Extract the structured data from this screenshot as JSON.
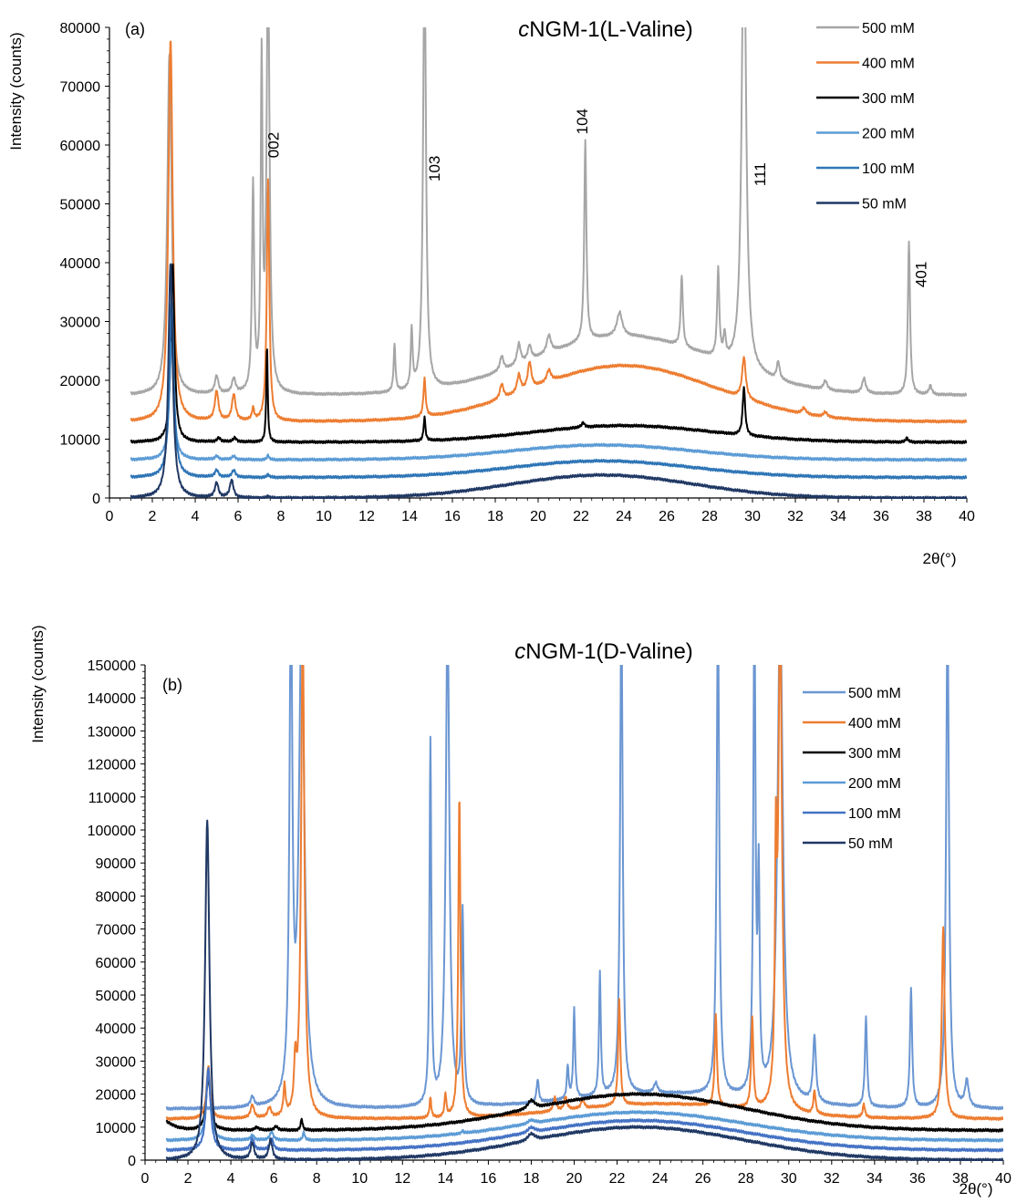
{
  "chart_data": [
    {
      "type": "line",
      "panel_label": "(a)",
      "title_prefix": "c",
      "title_rest": "NGM-1(L-Valine)",
      "xlabel": "2θ(°)",
      "ylabel": "Intensity (counts)",
      "xlim": [
        0,
        40
      ],
      "ylim": [
        0,
        80000
      ],
      "xticks": [
        0,
        2,
        4,
        6,
        8,
        10,
        12,
        14,
        16,
        18,
        20,
        22,
        24,
        26,
        28,
        30,
        32,
        34,
        36,
        38,
        40
      ],
      "yticks": [
        0,
        10000,
        20000,
        30000,
        40000,
        50000,
        60000,
        70000,
        80000
      ],
      "grid": false,
      "legend_position": "top-right",
      "annotations": [
        {
          "text": "002",
          "x": 7.9,
          "y": 60000
        },
        {
          "text": "103",
          "x": 15.4,
          "y": 56000
        },
        {
          "text": "104",
          "x": 22.3,
          "y": 64000
        },
        {
          "text": "111",
          "x": 30.6,
          "y": 55000
        },
        {
          "text": "401",
          "x": 38.1,
          "y": 38000
        }
      ],
      "series": [
        {
          "name": "500 mM",
          "color": "#a6a6a6",
          "baseline": 17500,
          "hump": 10000,
          "hump_center": 24,
          "hump_width": 6,
          "peaks": [
            [
              2.8,
              58000,
              0.12
            ],
            [
              5.0,
              3000,
              0.1
            ],
            [
              5.8,
              2500,
              0.1
            ],
            [
              6.7,
              35000,
              0.06
            ],
            [
              7.1,
              55000,
              0.05
            ],
            [
              7.4,
              75000,
              0.08
            ],
            [
              13.3,
              8000,
              0.05
            ],
            [
              14.1,
              10000,
              0.05
            ],
            [
              14.7,
              75000,
              0.08
            ],
            [
              18.3,
              2500,
              0.1
            ],
            [
              19.1,
              3500,
              0.1
            ],
            [
              19.6,
              2500,
              0.1
            ],
            [
              20.5,
              3000,
              0.12
            ],
            [
              22.2,
              34000,
              0.06
            ],
            [
              23.8,
              4000,
              0.15
            ],
            [
              26.7,
              12000,
              0.06
            ],
            [
              28.4,
              15000,
              0.06
            ],
            [
              28.7,
              4000,
              0.06
            ],
            [
              29.6,
              80000,
              0.12
            ],
            [
              31.2,
              3000,
              0.08
            ],
            [
              33.4,
              1500,
              0.1
            ],
            [
              35.2,
              2500,
              0.1
            ],
            [
              37.3,
              26000,
              0.06
            ],
            [
              38.3,
              1500,
              0.08
            ]
          ]
        },
        {
          "name": "400 mM",
          "color": "#ed7d31",
          "baseline": 13000,
          "hump": 9500,
          "hump_center": 24,
          "hump_width": 6,
          "peaks": [
            [
              2.85,
              65000,
              0.12
            ],
            [
              5.0,
              5000,
              0.1
            ],
            [
              5.8,
              4500,
              0.1
            ],
            [
              6.7,
              2000,
              0.06
            ],
            [
              7.4,
              41000,
              0.07
            ],
            [
              14.7,
              6500,
              0.06
            ],
            [
              18.3,
              2500,
              0.1
            ],
            [
              19.1,
              3000,
              0.1
            ],
            [
              19.6,
              4500,
              0.1
            ],
            [
              20.5,
              2000,
              0.12
            ],
            [
              29.6,
              7000,
              0.1
            ],
            [
              32.4,
              1000,
              0.1
            ],
            [
              33.4,
              800,
              0.1
            ]
          ]
        },
        {
          "name": "300 mM",
          "color": "#000000",
          "baseline": 9500,
          "hump": 2800,
          "hump_center": 24,
          "hump_width": 6,
          "peaks": [
            [
              2.95,
              30500,
              0.1
            ],
            [
              5.1,
              700,
              0.1
            ],
            [
              5.85,
              700,
              0.1
            ],
            [
              7.35,
              16500,
              0.04
            ],
            [
              14.7,
              4000,
              0.05
            ],
            [
              22.1,
              800,
              0.08
            ],
            [
              29.6,
              8200,
              0.07
            ],
            [
              37.2,
              700,
              0.06
            ]
          ]
        },
        {
          "name": "200 mM",
          "color": "#5b9bd5",
          "baseline": 6500,
          "hump": 2500,
          "hump_center": 23,
          "hump_width": 6,
          "peaks": [
            [
              2.9,
              20000,
              0.12
            ],
            [
              5.0,
              600,
              0.1
            ],
            [
              5.8,
              600,
              0.1
            ],
            [
              7.4,
              800,
              0.05
            ]
          ]
        },
        {
          "name": "100 mM",
          "color": "#2e75b6",
          "baseline": 3500,
          "hump": 2800,
          "hump_center": 23,
          "hump_width": 6,
          "peaks": [
            [
              2.9,
              30000,
              0.12
            ],
            [
              5.0,
              1200,
              0.1
            ],
            [
              5.8,
              1200,
              0.1
            ],
            [
              7.4,
              500,
              0.05
            ]
          ]
        },
        {
          "name": "50 mM",
          "color": "#203864",
          "baseline": 0,
          "hump": 3900,
          "hump_center": 23,
          "hump_width": 6,
          "peaks": [
            [
              2.85,
              40000,
              0.12
            ],
            [
              5.0,
              2500,
              0.1
            ],
            [
              5.7,
              3000,
              0.1
            ],
            [
              7.4,
              300,
              0.05
            ]
          ]
        }
      ]
    },
    {
      "type": "line",
      "panel_label": "(b)",
      "title_prefix": "c",
      "title_rest": "NGM-1(D-Valine)",
      "xlabel": "2θ(°)",
      "ylabel": "Intensity (counts)",
      "xlim": [
        0,
        40
      ],
      "ylim": [
        0,
        150000
      ],
      "xticks": [
        0,
        2,
        4,
        6,
        8,
        10,
        12,
        14,
        16,
        18,
        20,
        22,
        24,
        26,
        28,
        30,
        32,
        34,
        36,
        38,
        40
      ],
      "yticks": [
        0,
        10000,
        20000,
        30000,
        40000,
        50000,
        60000,
        70000,
        80000,
        90000,
        100000,
        110000,
        120000,
        130000,
        140000,
        150000
      ],
      "grid": false,
      "legend_position": "top-right",
      "annotations": [],
      "series": [
        {
          "name": "500 mM",
          "color": "#6a96d2",
          "baseline": 15500,
          "hump": 4500,
          "hump_center": 24,
          "hump_width": 6,
          "peaks": [
            [
              5.0,
              3000,
              0.1
            ],
            [
              6.8,
              150000,
              0.08
            ],
            [
              7.3,
              150000,
              0.15
            ],
            [
              13.3,
              110000,
              0.05
            ],
            [
              14.1,
              150000,
              0.1
            ],
            [
              14.8,
              58000,
              0.06
            ],
            [
              18.3,
              7000,
              0.06
            ],
            [
              19.7,
              10000,
              0.05
            ],
            [
              20.0,
              27000,
              0.05
            ],
            [
              21.2,
              37000,
              0.05
            ],
            [
              22.2,
              150000,
              0.07
            ],
            [
              23.8,
              3000,
              0.1
            ],
            [
              26.7,
              150000,
              0.07
            ],
            [
              28.4,
              150000,
              0.06
            ],
            [
              28.6,
              62000,
              0.05
            ],
            [
              29.6,
              150000,
              0.15
            ],
            [
              31.2,
              20000,
              0.08
            ],
            [
              33.6,
              27000,
              0.06
            ],
            [
              35.7,
              36000,
              0.06
            ],
            [
              37.4,
              150000,
              0.08
            ],
            [
              38.3,
              8000,
              0.1
            ]
          ]
        },
        {
          "name": "400 mM",
          "color": "#ed7d31",
          "baseline": 12500,
          "hump": 4500,
          "hump_center": 24,
          "hump_width": 6,
          "peaks": [
            [
              2.95,
              16000,
              0.1
            ],
            [
              5.0,
              4000,
              0.1
            ],
            [
              5.8,
              3000,
              0.1
            ],
            [
              6.5,
              9000,
              0.06
            ],
            [
              7.0,
              14000,
              0.06
            ],
            [
              7.35,
              150000,
              0.09
            ],
            [
              13.3,
              6000,
              0.05
            ],
            [
              14.0,
              7000,
              0.05
            ],
            [
              14.65,
              98000,
              0.06
            ],
            [
              19.1,
              4000,
              0.08
            ],
            [
              19.6,
              4000,
              0.08
            ],
            [
              20.4,
              3000,
              0.08
            ],
            [
              22.1,
              32000,
              0.06
            ],
            [
              26.6,
              28000,
              0.06
            ],
            [
              28.3,
              27000,
              0.06
            ],
            [
              29.4,
              65000,
              0.05
            ],
            [
              29.6,
              150000,
              0.1
            ],
            [
              31.2,
              7000,
              0.06
            ],
            [
              33.5,
              4000,
              0.06
            ],
            [
              37.2,
              58000,
              0.08
            ]
          ]
        },
        {
          "name": "300 mM",
          "color": "#000000",
          "baseline": 9000,
          "hump": 11000,
          "hump_center": 23,
          "hump_width": 7,
          "peaks": [
            [
              1.0,
              2500,
              0.4
            ],
            [
              2.95,
              16000,
              0.12
            ],
            [
              5.2,
              1000,
              0.1
            ],
            [
              6.1,
              1200,
              0.1
            ],
            [
              7.3,
              3500,
              0.05
            ],
            [
              18.0,
              2500,
              0.2
            ]
          ]
        },
        {
          "name": "200 mM",
          "color": "#5b9bd5",
          "baseline": 6000,
          "hump": 8500,
          "hump_center": 23,
          "hump_width": 7,
          "peaks": [
            [
              2.95,
              21000,
              0.12
            ],
            [
              5.0,
              1500,
              0.1
            ],
            [
              5.9,
              2500,
              0.1
            ],
            [
              7.4,
              2500,
              0.05
            ],
            [
              14.8,
              800,
              0.05
            ],
            [
              18.0,
              1000,
              0.2
            ]
          ]
        },
        {
          "name": "100 mM",
          "color": "#4472c4",
          "baseline": 3000,
          "hump": 9000,
          "hump_center": 23,
          "hump_width": 7,
          "peaks": [
            [
              2.95,
              25000,
              0.12
            ],
            [
              5.0,
              3500,
              0.1
            ],
            [
              5.9,
              3500,
              0.1
            ],
            [
              18.0,
              1500,
              0.2
            ]
          ]
        },
        {
          "name": "50 mM",
          "color": "#203864",
          "baseline": 0,
          "hump": 10000,
          "hump_center": 23,
          "hump_width": 7,
          "peaks": [
            [
              2.9,
              103000,
              0.12
            ],
            [
              5.0,
              5000,
              0.1
            ],
            [
              5.85,
              6000,
              0.1
            ],
            [
              18.0,
              2000,
              0.2
            ]
          ]
        }
      ]
    }
  ]
}
